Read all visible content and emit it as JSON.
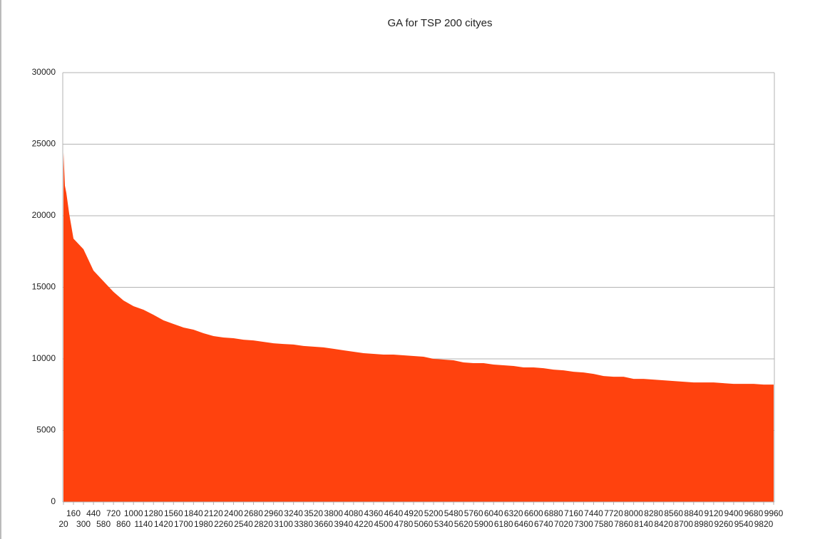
{
  "chart_data": {
    "type": "area",
    "title": "GA for TSP 200 cityes",
    "color": "#ff420e",
    "grid": true,
    "x": [
      20,
      40,
      60,
      100,
      160,
      300,
      440,
      580,
      720,
      860,
      1000,
      1140,
      1280,
      1420,
      1560,
      1700,
      1840,
      1980,
      2120,
      2260,
      2400,
      2540,
      2680,
      2820,
      2960,
      3100,
      3240,
      3380,
      3520,
      3660,
      3800,
      3940,
      4080,
      4220,
      4360,
      4500,
      4640,
      4780,
      4920,
      5060,
      5200,
      5340,
      5480,
      5620,
      5760,
      5900,
      6040,
      6180,
      6320,
      6460,
      6600,
      6740,
      6880,
      7020,
      7160,
      7300,
      7440,
      7580,
      7720,
      7860,
      8000,
      8140,
      8280,
      8420,
      8560,
      8700,
      8840,
      8980,
      9120,
      9260,
      9400,
      9540,
      9680,
      9820,
      9960
    ],
    "values": [
      24430,
      22100,
      21600,
      20150,
      18400,
      17660,
      16170,
      15420,
      14680,
      14080,
      13680,
      13430,
      13080,
      12690,
      12440,
      12190,
      12040,
      11790,
      11590,
      11490,
      11440,
      11340,
      11290,
      11190,
      11090,
      11040,
      11000,
      10900,
      10850,
      10800,
      10700,
      10600,
      10500,
      10400,
      10350,
      10300,
      10300,
      10250,
      10200,
      10150,
      10000,
      9950,
      9900,
      9750,
      9700,
      9700,
      9600,
      9550,
      9500,
      9400,
      9400,
      9350,
      9250,
      9200,
      9100,
      9050,
      8950,
      8800,
      8750,
      8750,
      8600,
      8600,
      8550,
      8500,
      8450,
      8400,
      8350,
      8350,
      8350,
      8300,
      8250,
      8250,
      8250,
      8200,
      8200
    ],
    "xlim": [
      20,
      9960
    ],
    "xticks": [
      20,
      160,
      300,
      440,
      580,
      720,
      860,
      1000,
      1140,
      1280,
      1420,
      1560,
      1700,
      1840,
      1980,
      2120,
      2260,
      2400,
      2540,
      2680,
      2820,
      2960,
      3100,
      3240,
      3380,
      3520,
      3660,
      3800,
      3940,
      4080,
      4220,
      4360,
      4500,
      4640,
      4780,
      4920,
      5060,
      5200,
      5340,
      5480,
      5620,
      5760,
      5900,
      6040,
      6180,
      6320,
      6460,
      6600,
      6740,
      6880,
      7020,
      7160,
      7300,
      7440,
      7580,
      7720,
      7860,
      8000,
      8140,
      8280,
      8420,
      8560,
      8700,
      8840,
      8980,
      9120,
      9260,
      9400,
      9540,
      9680,
      9820,
      9960
    ],
    "ylim": [
      0,
      30000
    ],
    "yticks": [
      0,
      5000,
      10000,
      15000,
      20000,
      25000,
      30000
    ]
  }
}
